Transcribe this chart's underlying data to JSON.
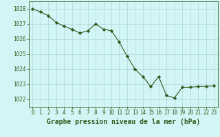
{
  "hours": [
    0,
    1,
    2,
    3,
    4,
    5,
    6,
    7,
    8,
    9,
    10,
    11,
    12,
    13,
    14,
    15,
    16,
    17,
    18,
    19,
    20,
    21,
    22,
    23
  ],
  "pressure": [
    1028.0,
    1027.8,
    1027.55,
    1027.1,
    1026.85,
    1026.65,
    1026.4,
    1026.55,
    1027.0,
    1026.65,
    1026.55,
    1025.8,
    1024.85,
    1024.0,
    1023.5,
    1022.85,
    1023.5,
    1022.25,
    1022.1,
    1022.8,
    1022.8,
    1022.85,
    1022.85,
    1022.9
  ],
  "line_color": "#2d5a1b",
  "marker": "D",
  "marker_size": 2.2,
  "bg_color": "#d4f5f5",
  "grid_color": "#b0dede",
  "xlabel": "Graphe pression niveau de la mer (hPa)",
  "ylim": [
    1021.5,
    1028.5
  ],
  "yticks": [
    1022,
    1023,
    1024,
    1025,
    1026,
    1027,
    1028
  ],
  "xticks": [
    0,
    1,
    2,
    3,
    4,
    5,
    6,
    7,
    8,
    9,
    10,
    11,
    12,
    13,
    14,
    15,
    16,
    17,
    18,
    19,
    20,
    21,
    22,
    23
  ],
  "tick_fontsize": 5.5,
  "xlabel_fontsize": 7.0
}
